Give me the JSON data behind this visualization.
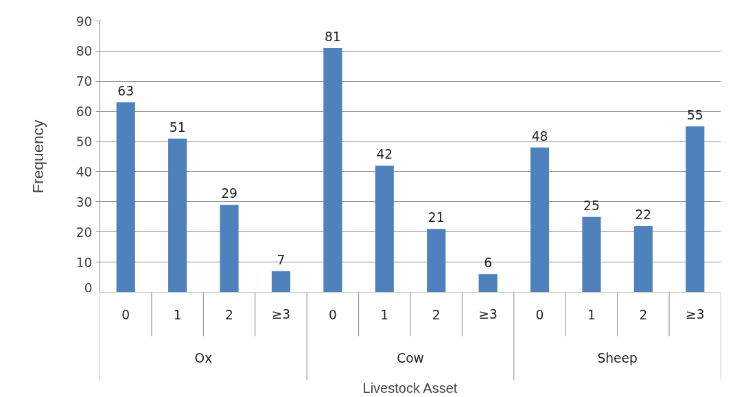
{
  "chart_data": {
    "type": "bar",
    "xlabel": "Livestock Asset",
    "ylabel": "Frequency",
    "categories": [
      "0",
      "1",
      "2",
      "≥3",
      "0",
      "1",
      "2",
      "≥3",
      "0",
      "1",
      "2",
      "≥3"
    ],
    "values": [
      63,
      51,
      29,
      7,
      81,
      42,
      21,
      6,
      48,
      25,
      22,
      55
    ],
    "color": "#4f81bd",
    "ylim": [
      0,
      90
    ],
    "yticks": [
      0,
      10,
      20,
      30,
      40,
      50,
      60,
      70,
      80,
      90
    ],
    "grid": "y",
    "data_labels": true,
    "annotations": [
      "Ox",
      "Cow",
      "Sheep"
    ]
  }
}
